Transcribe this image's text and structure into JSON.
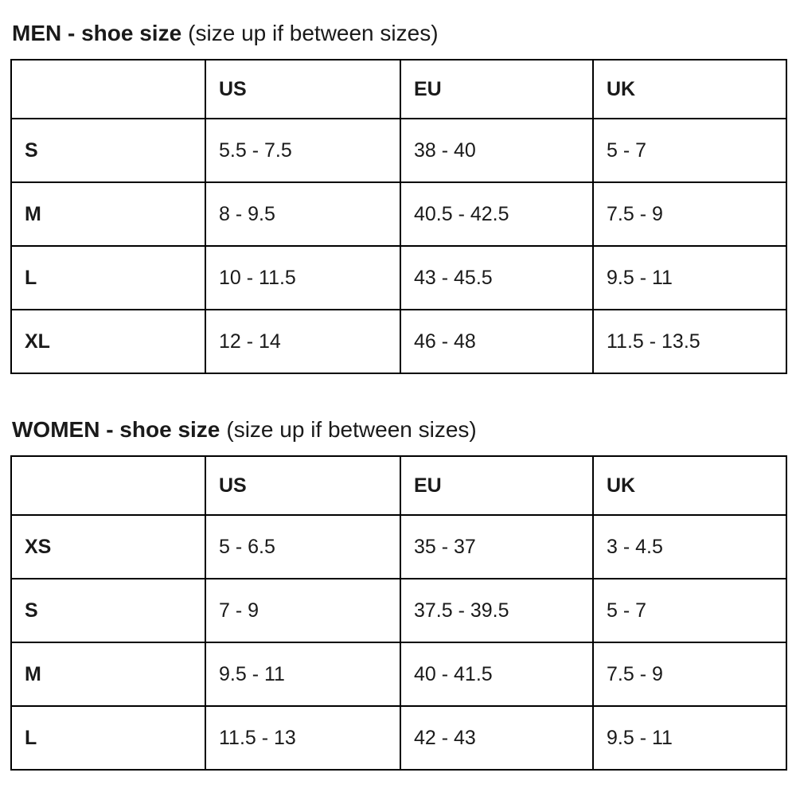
{
  "page": {
    "background_color": "#ffffff",
    "text_color": "#1a1a1a",
    "border_color": "#000000"
  },
  "tables": [
    {
      "title_bold": "MEN - shoe size",
      "title_regular": "(size up if between sizes)",
      "columns": [
        "",
        "US",
        "EU",
        "UK"
      ],
      "rows": [
        {
          "label": "S",
          "us": "5.5 - 7.5",
          "eu": "38 - 40",
          "uk": "5 - 7"
        },
        {
          "label": "M",
          "us": "8 - 9.5",
          "eu": "40.5 - 42.5",
          "uk": "7.5 - 9"
        },
        {
          "label": "L",
          "us": "10 - 11.5",
          "eu": "43 - 45.5",
          "uk": "9.5 - 11"
        },
        {
          "label": "XL",
          "us": "12 - 14",
          "eu": "46 - 48",
          "uk": "11.5 - 13.5"
        }
      ]
    },
    {
      "title_bold": "WOMEN - shoe size",
      "title_regular": "(size up if between sizes)",
      "columns": [
        "",
        "US",
        "EU",
        "UK"
      ],
      "rows": [
        {
          "label": "XS",
          "us": "5 - 6.5",
          "eu": "35 - 37",
          "uk": "3 - 4.5"
        },
        {
          "label": "S",
          "us": "7 - 9",
          "eu": "37.5 - 39.5",
          "uk": "5 - 7"
        },
        {
          "label": "M",
          "us": "9.5 - 11",
          "eu": "40 - 41.5",
          "uk": "7.5 - 9"
        },
        {
          "label": "L",
          "us": "11.5 - 13",
          "eu": "42 - 43",
          "uk": "9.5 - 11"
        }
      ]
    }
  ]
}
